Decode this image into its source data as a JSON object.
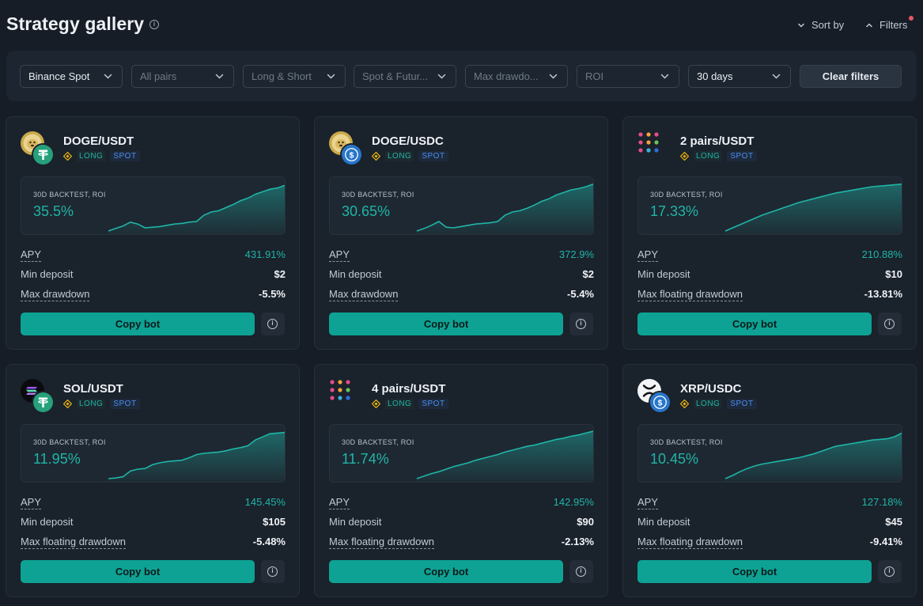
{
  "header": {
    "title": "Strategy gallery",
    "sort_label": "Sort by",
    "filters_label": "Filters"
  },
  "filters": {
    "exchange": "Binance Spot",
    "pairs": "All pairs",
    "direction": "Long & Short",
    "market": "Spot & Futur...",
    "drawdown": "Max drawdo...",
    "roi": "ROI",
    "period": "30 days",
    "clear_label": "Clear filters"
  },
  "colors": {
    "accent": "#0ea294",
    "teal_text": "#1fb5a7",
    "spot_tag": "#4b8ef0",
    "bnb": "#f0b90b",
    "notification": "#e8566b"
  },
  "cards": [
    {
      "pair": "DOGE/USDT",
      "main_icon": "doge-coin-icon",
      "quote_icon": "usdt-tether-icon",
      "tag_direction": "LONG",
      "tag_market": "SPOT",
      "chart_label": "30D BACKTEST, ROI",
      "roi": "35.5%",
      "apy_label": "APY",
      "apy": "431.91%",
      "deposit_label": "Min deposit",
      "deposit": "$2",
      "drawdown_label": "Max drawdown",
      "drawdown": "-5.5%",
      "copy_label": "Copy bot",
      "roi_series": [
        0,
        4,
        8,
        14,
        11,
        5,
        6,
        7,
        9,
        11,
        12,
        14,
        15,
        25,
        30,
        32,
        37,
        42,
        48,
        52,
        58,
        62,
        66,
        68,
        72
      ]
    },
    {
      "pair": "DOGE/USDC",
      "main_icon": "doge-coin-icon",
      "quote_icon": "usdc-coin-icon",
      "tag_direction": "LONG",
      "tag_market": "SPOT",
      "chart_label": "30D BACKTEST, ROI",
      "roi": "30.65%",
      "apy_label": "APY",
      "apy": "372.9%",
      "deposit_label": "Min deposit",
      "deposit": "$2",
      "drawdown_label": "Max drawdown",
      "drawdown": "-5.4%",
      "copy_label": "Copy bot",
      "roi_series": [
        0,
        4,
        9,
        15,
        6,
        5,
        7,
        9,
        11,
        12,
        13,
        15,
        25,
        30,
        32,
        36,
        41,
        47,
        51,
        57,
        61,
        65,
        67,
        70,
        74
      ]
    },
    {
      "pair": "2 pairs/USDT",
      "main_icon": "multi-pair-dots-icon",
      "quote_icon": "",
      "tag_direction": "LONG",
      "tag_market": "SPOT",
      "chart_label": "30D BACKTEST, ROI",
      "roi": "17.33%",
      "apy_label": "APY",
      "apy": "210.88%",
      "deposit_label": "Min deposit",
      "deposit": "$10",
      "drawdown_label": "Max floating drawdown",
      "drawdown": "-13.81%",
      "copy_label": "Copy bot",
      "roi_series": [
        0,
        5,
        10,
        15,
        20,
        25,
        29,
        33,
        37,
        41,
        45,
        48,
        51,
        54,
        57,
        60,
        62,
        64,
        66,
        68,
        70,
        71,
        72,
        73,
        74
      ]
    },
    {
      "pair": "SOL/USDT",
      "main_icon": "solana-coin-icon",
      "quote_icon": "usdt-tether-icon",
      "tag_direction": "LONG",
      "tag_market": "SPOT",
      "chart_label": "30D BACKTEST, ROI",
      "roi": "11.95%",
      "apy_label": "APY",
      "apy": "145.45%",
      "deposit_label": "Min deposit",
      "deposit": "$105",
      "drawdown_label": "Max floating drawdown",
      "drawdown": "-5.48%",
      "copy_label": "Copy bot",
      "roi_series": [
        0,
        1,
        3,
        12,
        15,
        16,
        22,
        25,
        27,
        28,
        29,
        33,
        38,
        40,
        41,
        42,
        44,
        47,
        49,
        52,
        61,
        66,
        71,
        72,
        73
      ]
    },
    {
      "pair": "4 pairs/USDT",
      "main_icon": "multi-pair-dots-icon",
      "quote_icon": "",
      "tag_direction": "LONG",
      "tag_market": "SPOT",
      "chart_label": "30D BACKTEST, ROI",
      "roi": "11.74%",
      "apy_label": "APY",
      "apy": "142.95%",
      "deposit_label": "Min deposit",
      "deposit": "$90",
      "drawdown_label": "Max floating drawdown",
      "drawdown": "-2.13%",
      "copy_label": "Copy bot",
      "roi_series": [
        0,
        4,
        8,
        11,
        15,
        19,
        22,
        25,
        29,
        32,
        35,
        38,
        42,
        45,
        48,
        51,
        53,
        56,
        59,
        62,
        64,
        67,
        69,
        72,
        75
      ]
    },
    {
      "pair": "XRP/USDC",
      "main_icon": "xrp-coin-icon",
      "quote_icon": "usdc-coin-icon",
      "tag_direction": "LONG",
      "tag_market": "SPOT",
      "chart_label": "30D BACKTEST, ROI",
      "roi": "10.45%",
      "apy_label": "APY",
      "apy": "127.18%",
      "deposit_label": "Min deposit",
      "deposit": "$45",
      "drawdown_label": "Max floating drawdown",
      "drawdown": "-9.41%",
      "copy_label": "Copy bot",
      "roi_series": [
        0,
        5,
        11,
        16,
        20,
        23,
        25,
        27,
        29,
        31,
        33,
        36,
        39,
        43,
        47,
        51,
        53,
        55,
        57,
        59,
        61,
        62,
        63,
        66,
        72
      ]
    }
  ]
}
